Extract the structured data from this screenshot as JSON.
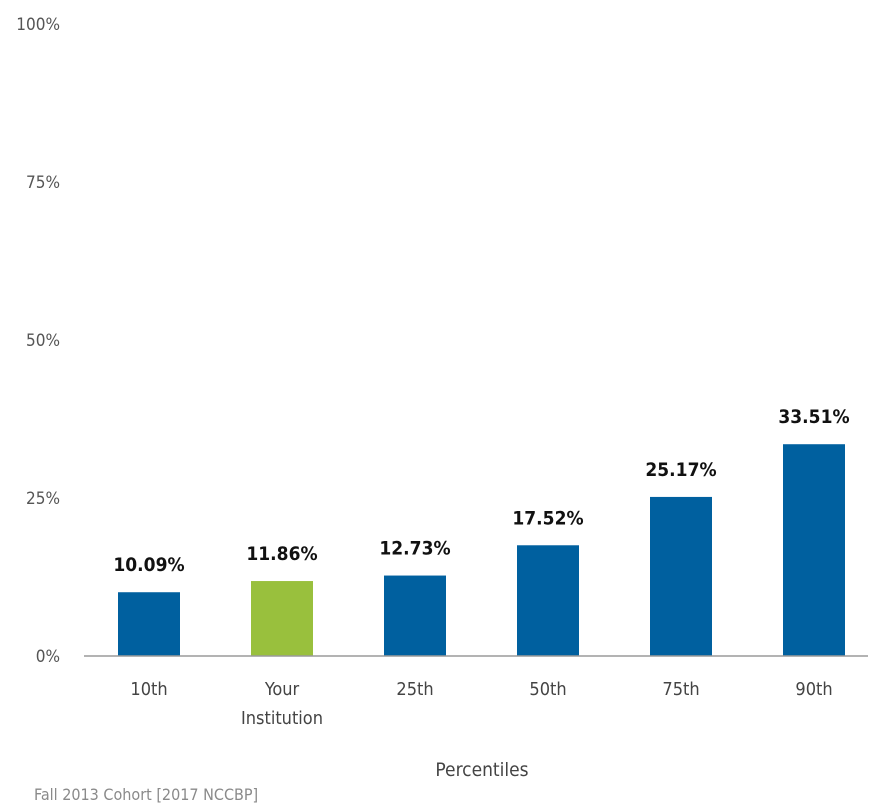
{
  "chart_data": {
    "type": "bar",
    "categories": [
      "10th",
      "Your Institution",
      "25th",
      "50th",
      "75th",
      "90th"
    ],
    "category_lines": [
      [
        "10th"
      ],
      [
        "Your",
        "Institution"
      ],
      [
        "25th"
      ],
      [
        "50th"
      ],
      [
        "75th"
      ],
      [
        "90th"
      ]
    ],
    "values": [
      10.09,
      11.86,
      12.73,
      17.52,
      25.17,
      33.51
    ],
    "value_labels": [
      "10.09%",
      "11.86%",
      "12.73%",
      "17.52%",
      "25.17%",
      "33.51%"
    ],
    "bar_colors": [
      "#00609f",
      "#99c03d",
      "#00609f",
      "#00609f",
      "#00609f",
      "#00609f"
    ],
    "xlabel": "Percentiles",
    "ylabel": "",
    "ylim": [
      0,
      100
    ],
    "yticks": [
      0,
      25,
      50,
      75,
      100
    ],
    "ytick_labels": [
      "0%",
      "25%",
      "50%",
      "75%",
      "100%"
    ],
    "grid": false,
    "legend": "none",
    "footnote": "Fall 2013 Cohort [2017 NCCBP]"
  }
}
